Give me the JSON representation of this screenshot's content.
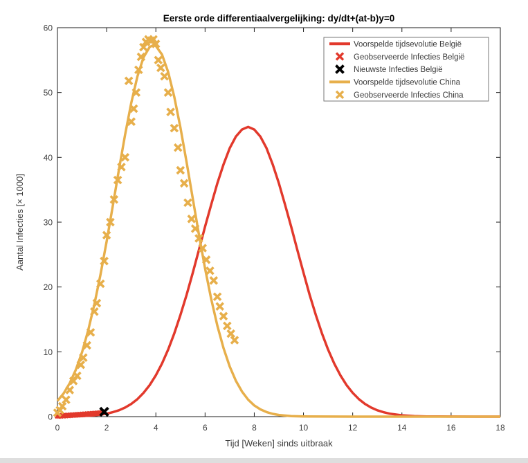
{
  "figure": {
    "background": "#ffffff",
    "window_edge_color": "#dedede"
  },
  "chart_data": {
    "type": "line",
    "title": "Eerste orde differentiaalvergelijking: dy/dt+(at-b)y=0",
    "xlabel": "Tijd [Weken] sinds uitbraak",
    "ylabel": "Aantal Infecties [× 1000]",
    "xlim": [
      0,
      18
    ],
    "ylim": [
      0,
      60
    ],
    "x_ticks": [
      0,
      2,
      4,
      6,
      8,
      10,
      12,
      14,
      16,
      18
    ],
    "y_ticks": [
      0,
      10,
      20,
      30,
      40,
      50,
      60
    ],
    "grid": false,
    "legend_position": "top-right",
    "axis_color": "#1c1c1c",
    "tick_label_color": "#3d3d3d",
    "legend_border_color": "#777777",
    "series": [
      {
        "name": "Voorspelde tijdsevolutie België",
        "type": "line",
        "color": "#e2392c",
        "line_width": 3.5,
        "points": [
          [
            0,
            0.01
          ],
          [
            0.5,
            0.03
          ],
          [
            1,
            0.08
          ],
          [
            1.5,
            0.2
          ],
          [
            2,
            0.46
          ],
          [
            2.25,
            0.68
          ],
          [
            2.5,
            0.98
          ],
          [
            2.75,
            1.4
          ],
          [
            3,
            1.96
          ],
          [
            3.25,
            2.7
          ],
          [
            3.5,
            3.66
          ],
          [
            3.75,
            4.87
          ],
          [
            4,
            6.37
          ],
          [
            4.25,
            8.19
          ],
          [
            4.5,
            10.35
          ],
          [
            4.75,
            12.85
          ],
          [
            5,
            15.7
          ],
          [
            5.25,
            18.8
          ],
          [
            5.5,
            22.2
          ],
          [
            5.75,
            25.7
          ],
          [
            6,
            29.3
          ],
          [
            6.25,
            32.7
          ],
          [
            6.5,
            36
          ],
          [
            6.75,
            38.9
          ],
          [
            7,
            41.4
          ],
          [
            7.25,
            43.2
          ],
          [
            7.5,
            44.3
          ],
          [
            7.75,
            44.7
          ],
          [
            8,
            44.3
          ],
          [
            8.25,
            43.2
          ],
          [
            8.5,
            41.4
          ],
          [
            8.75,
            38.9
          ],
          [
            9,
            36
          ],
          [
            9.25,
            32.7
          ],
          [
            9.5,
            29.3
          ],
          [
            9.75,
            25.7
          ],
          [
            10,
            22.2
          ],
          [
            10.25,
            18.8
          ],
          [
            10.5,
            15.7
          ],
          [
            10.75,
            12.85
          ],
          [
            11,
            10.35
          ],
          [
            11.25,
            8.19
          ],
          [
            11.5,
            6.37
          ],
          [
            11.75,
            4.87
          ],
          [
            12,
            3.66
          ],
          [
            12.25,
            2.7
          ],
          [
            12.5,
            1.96
          ],
          [
            12.75,
            1.4
          ],
          [
            13,
            0.98
          ],
          [
            13.25,
            0.68
          ],
          [
            13.5,
            0.46
          ],
          [
            14,
            0.2
          ],
          [
            14.5,
            0.08
          ],
          [
            15,
            0.03
          ],
          [
            16,
            0.01
          ],
          [
            17,
            0
          ],
          [
            18,
            0
          ]
        ]
      },
      {
        "name": "Geobserveerde Infecties België",
        "type": "scatter",
        "marker": "x",
        "color": "#e2392c",
        "marker_size": 3.2,
        "marker_stroke": 2.6,
        "points": [
          [
            0,
            0.1
          ],
          [
            0.05,
            0.08
          ],
          [
            0.1,
            0.13
          ],
          [
            0.15,
            0.1
          ],
          [
            0.2,
            0.16
          ],
          [
            0.25,
            0.12
          ],
          [
            0.3,
            0.18
          ],
          [
            0.35,
            0.15
          ],
          [
            0.4,
            0.2
          ],
          [
            0.45,
            0.17
          ],
          [
            0.5,
            0.23
          ],
          [
            0.55,
            0.2
          ],
          [
            0.6,
            0.26
          ],
          [
            0.65,
            0.22
          ],
          [
            0.7,
            0.28
          ],
          [
            0.75,
            0.25
          ],
          [
            0.8,
            0.31
          ],
          [
            0.85,
            0.28
          ],
          [
            0.9,
            0.33
          ],
          [
            0.95,
            0.3
          ],
          [
            1,
            0.36
          ],
          [
            1.05,
            0.33
          ],
          [
            1.1,
            0.39
          ],
          [
            1.15,
            0.36
          ],
          [
            1.2,
            0.41
          ],
          [
            1.25,
            0.39
          ],
          [
            1.3,
            0.44
          ],
          [
            1.35,
            0.42
          ],
          [
            1.4,
            0.47
          ],
          [
            1.45,
            0.45
          ],
          [
            1.5,
            0.5
          ],
          [
            1.55,
            0.48
          ],
          [
            1.6,
            0.53
          ],
          [
            1.65,
            0.51
          ],
          [
            1.7,
            0.56
          ],
          [
            1.75,
            0.55
          ],
          [
            1.8,
            0.6
          ],
          [
            1.85,
            0.62
          ]
        ]
      },
      {
        "name": "Nieuwste Infecties België",
        "type": "scatter",
        "marker": "x",
        "color": "#000000",
        "marker_size": 5.8,
        "marker_stroke": 4,
        "points": [
          [
            1.9,
            0.75
          ]
        ]
      },
      {
        "name": "Voorspelde tijdsevolutie China",
        "type": "line",
        "color": "#e7af4b",
        "line_width": 3.5,
        "points": [
          [
            0,
            2.42
          ],
          [
            0.25,
            3.58
          ],
          [
            0.5,
            5.17
          ],
          [
            0.75,
            7.26
          ],
          [
            1,
            9.95
          ],
          [
            1.25,
            13.29
          ],
          [
            1.5,
            17.28
          ],
          [
            1.75,
            21.9
          ],
          [
            2,
            27.03
          ],
          [
            2.25,
            32.51
          ],
          [
            2.5,
            38.11
          ],
          [
            2.75,
            43.51
          ],
          [
            3,
            48.41
          ],
          [
            3.25,
            52.48
          ],
          [
            3.5,
            55.43
          ],
          [
            3.75,
            57.03
          ],
          [
            3.9,
            57.3
          ],
          [
            4,
            57.18
          ],
          [
            4.25,
            55.86
          ],
          [
            4.5,
            53.16
          ],
          [
            4.75,
            49.3
          ],
          [
            5,
            44.55
          ],
          [
            5.25,
            39.21
          ],
          [
            5.5,
            33.63
          ],
          [
            5.75,
            28.11
          ],
          [
            6,
            22.88
          ],
          [
            6.25,
            18.15
          ],
          [
            6.5,
            14.03
          ],
          [
            6.75,
            10.57
          ],
          [
            7,
            7.75
          ],
          [
            7.25,
            5.54
          ],
          [
            7.5,
            3.86
          ],
          [
            7.75,
            2.62
          ],
          [
            8,
            1.73
          ],
          [
            8.25,
            1.12
          ],
          [
            8.5,
            0.7
          ],
          [
            8.75,
            0.43
          ],
          [
            9,
            0.26
          ],
          [
            9.5,
            0.08
          ],
          [
            10,
            0.03
          ],
          [
            11,
            0.01
          ],
          [
            12,
            0
          ],
          [
            14,
            0
          ],
          [
            16,
            0
          ],
          [
            18,
            0
          ]
        ]
      },
      {
        "name": "Geobserveerde Infecties China",
        "type": "scatter",
        "marker": "x",
        "color": "#e7af4b",
        "marker_size": 5,
        "marker_stroke": 3.6,
        "points": [
          [
            0,
            0.6
          ],
          [
            0.1,
            1
          ],
          [
            0.2,
            1.6
          ],
          [
            0.35,
            2.6
          ],
          [
            0.5,
            4.1
          ],
          [
            0.65,
            5.5
          ],
          [
            0.8,
            6.3
          ],
          [
            0.95,
            8
          ],
          [
            1.05,
            9.1
          ],
          [
            1.2,
            11
          ],
          [
            1.35,
            13
          ],
          [
            1.5,
            16.2
          ],
          [
            1.6,
            17.5
          ],
          [
            1.75,
            20.5
          ],
          [
            1.9,
            24
          ],
          [
            2,
            28
          ],
          [
            2.15,
            30
          ],
          [
            2.3,
            33.5
          ],
          [
            2.45,
            36.5
          ],
          [
            2.6,
            38.5
          ],
          [
            2.75,
            40
          ],
          [
            2.9,
            51.8
          ],
          [
            3,
            45.5
          ],
          [
            3.1,
            47.5
          ],
          [
            3.2,
            50
          ],
          [
            3.3,
            53.5
          ],
          [
            3.4,
            55.5
          ],
          [
            3.5,
            57
          ],
          [
            3.6,
            57.8
          ],
          [
            3.7,
            58.2
          ],
          [
            3.8,
            58
          ],
          [
            3.9,
            58.2
          ],
          [
            4,
            57.5
          ],
          [
            4.1,
            55
          ],
          [
            4.2,
            53.8
          ],
          [
            4.35,
            52.5
          ],
          [
            4.5,
            50
          ],
          [
            4.6,
            47
          ],
          [
            4.75,
            44.5
          ],
          [
            4.9,
            41.5
          ],
          [
            5,
            38
          ],
          [
            5.15,
            36
          ],
          [
            5.3,
            33
          ],
          [
            5.45,
            30.5
          ],
          [
            5.6,
            29
          ],
          [
            5.75,
            27.5
          ],
          [
            5.9,
            26
          ],
          [
            6.05,
            24.2
          ],
          [
            6.2,
            22.5
          ],
          [
            6.35,
            21
          ],
          [
            6.5,
            18.5
          ],
          [
            6.6,
            17
          ],
          [
            6.75,
            15.5
          ],
          [
            6.9,
            14
          ],
          [
            7.05,
            12.8
          ],
          [
            7.2,
            11.8
          ]
        ]
      }
    ]
  }
}
